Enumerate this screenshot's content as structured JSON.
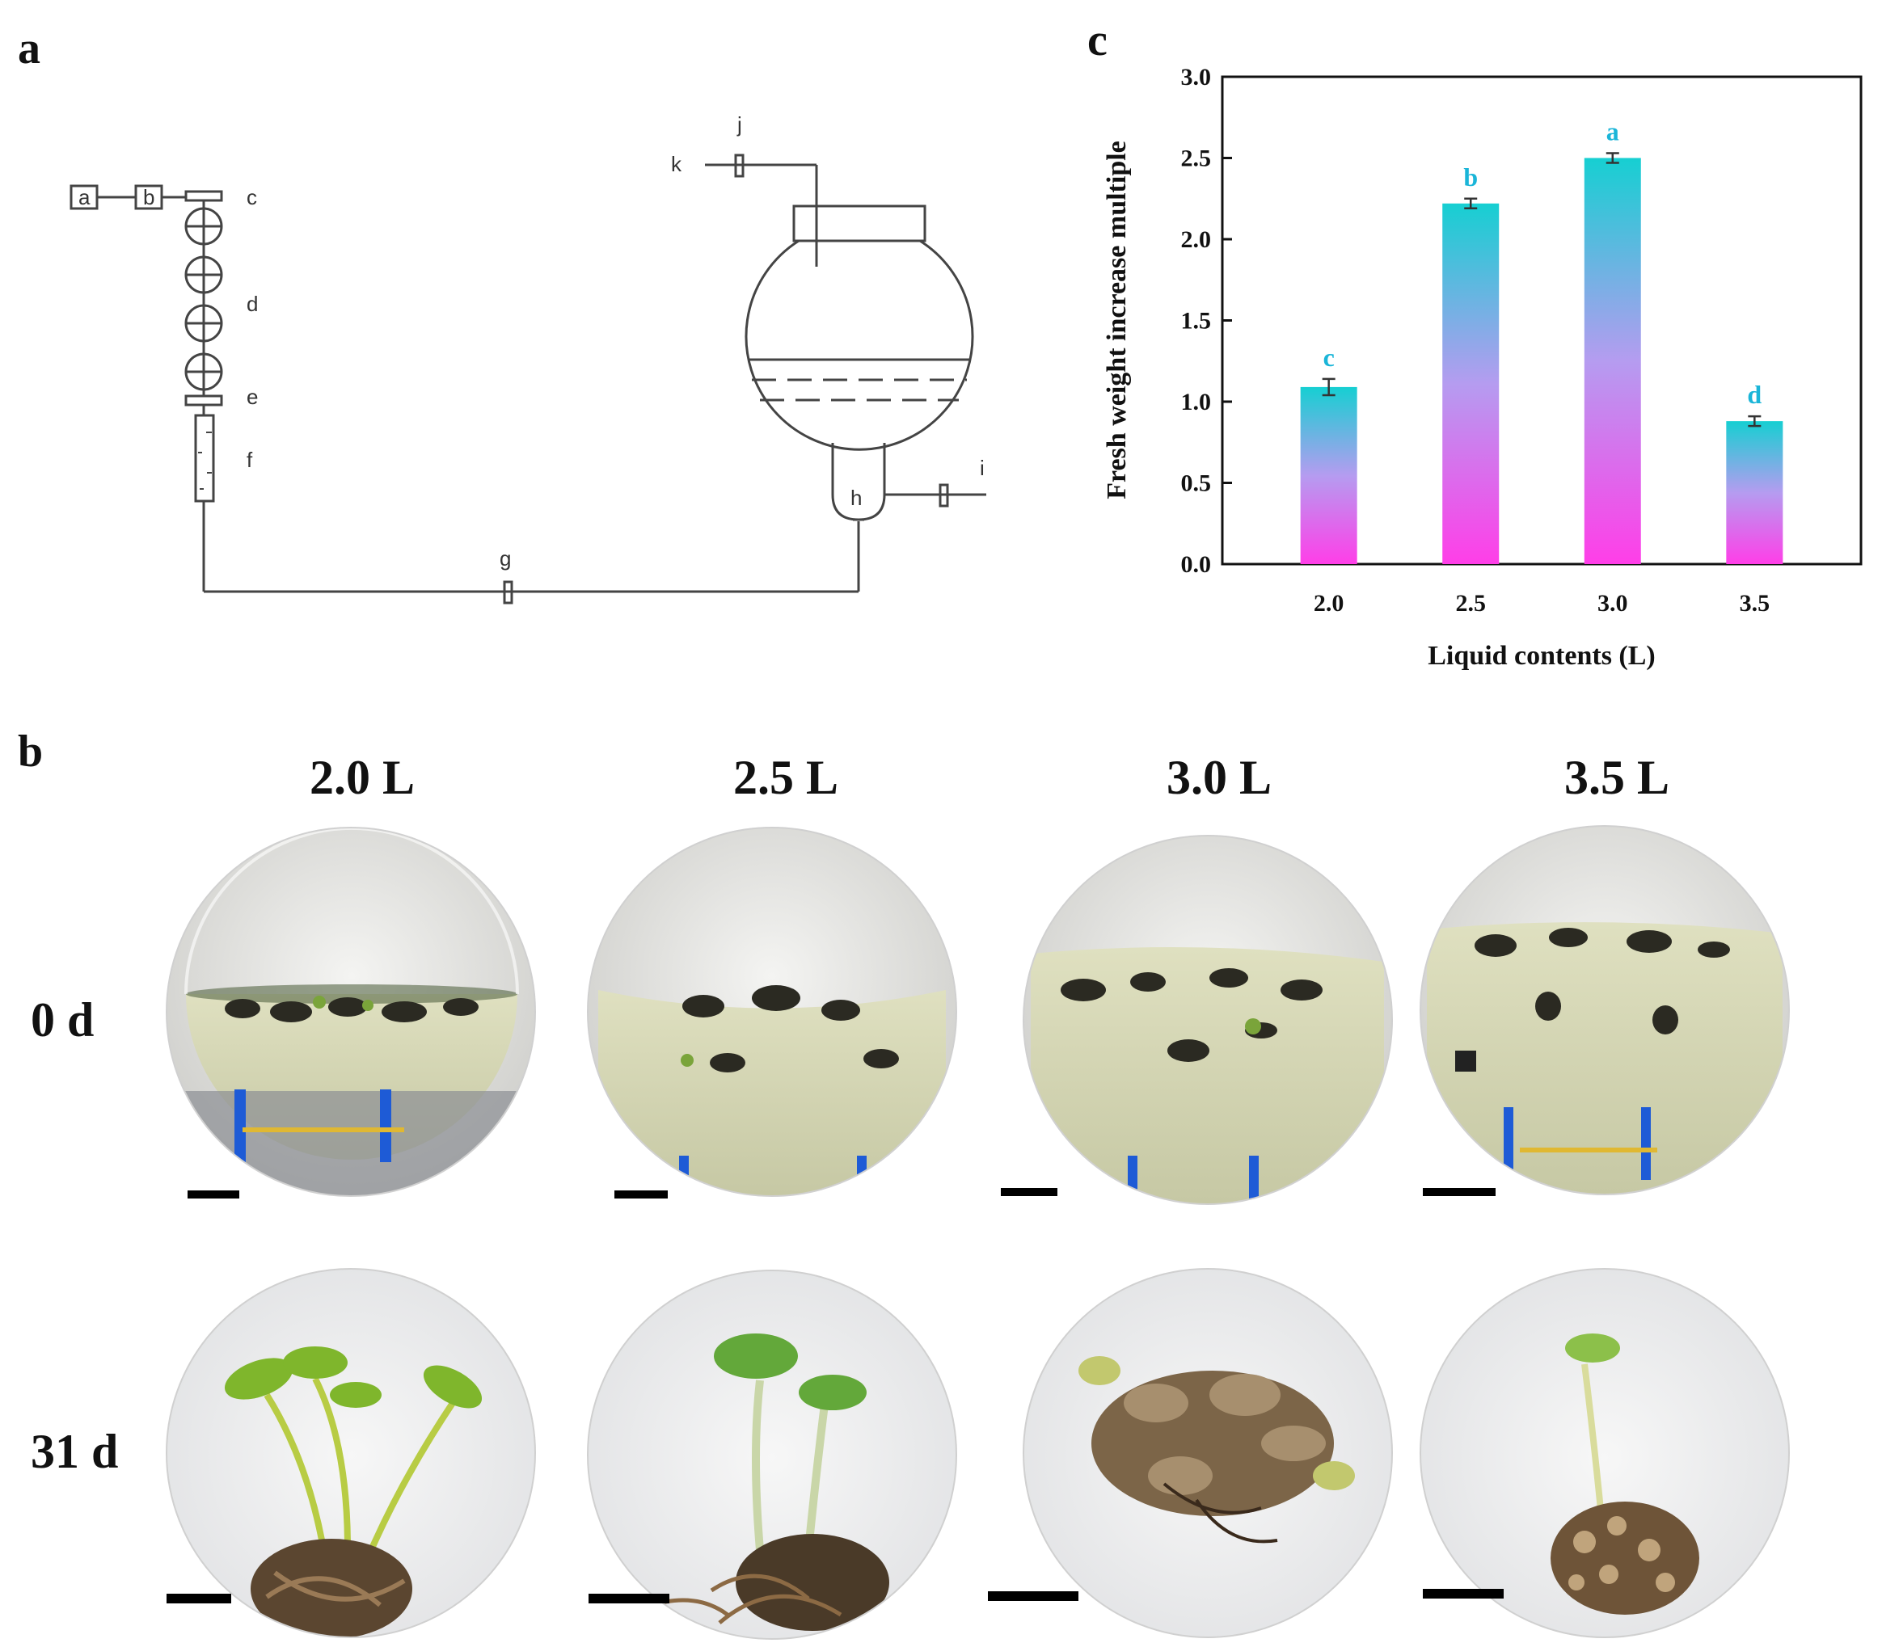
{
  "panels": {
    "a": {
      "letter": "a",
      "labels": [
        "a",
        "b",
        "c",
        "d",
        "e",
        "f",
        "g",
        "h",
        "i",
        "j",
        "k"
      ]
    },
    "b": {
      "letter": "b",
      "columns": [
        "2.0 L",
        "2.5 L",
        "3.0 L",
        "3.5 L"
      ],
      "rows": [
        "0 d",
        "31 d"
      ]
    },
    "c": {
      "letter": "c"
    }
  },
  "chart_data": {
    "type": "bar",
    "categories": [
      "2.0",
      "2.5",
      "3.0",
      "3.5"
    ],
    "values": [
      1.09,
      2.22,
      2.5,
      0.88
    ],
    "errors": [
      0.05,
      0.03,
      0.03,
      0.03
    ],
    "significance": [
      "c",
      "b",
      "a",
      "d"
    ],
    "xlabel": "Liquid contents (L)",
    "ylabel": "Fresh weight increase multiple",
    "ylim": [
      0,
      3.0
    ],
    "yticks": [
      "0.0",
      "0.5",
      "1.0",
      "1.5",
      "2.0",
      "2.5",
      "3.0"
    ],
    "colors": {
      "bar_top": "#16cfd2",
      "bar_mid": "#b59cf0",
      "bar_bottom": "#ff3ee8",
      "sig_label": "#1ab5d8"
    },
    "grid": false
  }
}
